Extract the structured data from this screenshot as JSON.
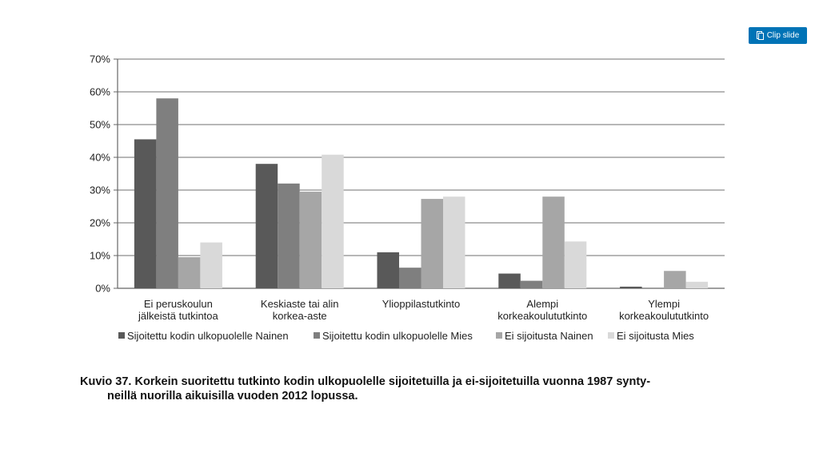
{
  "clip_button": {
    "label": "Clip slide",
    "icon": "clip-icon"
  },
  "chart_data": {
    "type": "bar",
    "categories": [
      [
        "Ei peruskoulun",
        "jälkeistä tutkintoa"
      ],
      [
        "Keskiaste tai alin",
        "korkea-aste"
      ],
      [
        "Ylioppilastutkinto"
      ],
      [
        "Alempi",
        "korkeakoulututkinto"
      ],
      [
        "Ylempi",
        "korkeakoulututkinto"
      ]
    ],
    "series": [
      {
        "name": "Sijoitettu kodin ulkopuolelle Nainen",
        "color": "#595959",
        "values": [
          45.5,
          38,
          11,
          4.5,
          0.5
        ]
      },
      {
        "name": "Sijoitettu kodin ulkopuolelle Mies",
        "color": "#7f7f7f",
        "values": [
          58,
          32,
          6.3,
          2.3,
          0
        ]
      },
      {
        "name": "Ei sijoitusta Nainen",
        "color": "#a6a6a6",
        "values": [
          9.5,
          29.5,
          27.3,
          28,
          5.3
        ]
      },
      {
        "name": "Ei sijoitusta Mies",
        "color": "#d9d9d9",
        "values": [
          14,
          40.8,
          28,
          14.3,
          2
        ]
      }
    ],
    "ylim": [
      0,
      70
    ],
    "yticks": [
      "0%",
      "10%",
      "20%",
      "30%",
      "40%",
      "50%",
      "60%",
      "70%"
    ],
    "grid": true,
    "legend_position": "bottom"
  },
  "caption": {
    "line1": "Kuvio 37.  Korkein suoritettu tutkinto kodin ulkopuolelle sijoitetuilla ja ei-sijoitetuilla vuonna 1987 synty-",
    "line2": "neillä nuorilla aikuisilla vuoden 2012 lopussa."
  }
}
